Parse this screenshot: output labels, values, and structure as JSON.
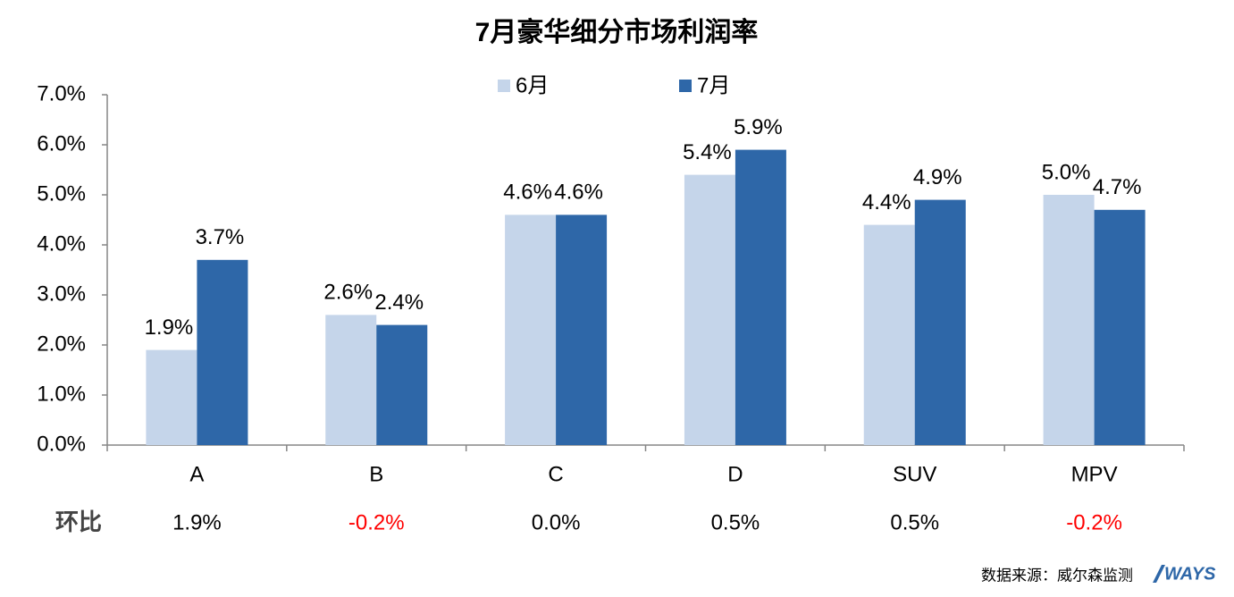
{
  "chart_data": {
    "type": "bar",
    "title": "7月豪华细分市场利润率",
    "categories": [
      "A",
      "B",
      "C",
      "D",
      "SUV",
      "MPV"
    ],
    "series": [
      {
        "name": "6月",
        "color": "#c5d5ea",
        "values": [
          1.9,
          2.6,
          4.6,
          5.4,
          4.4,
          5.0
        ],
        "value_labels": [
          "1.9%",
          "2.6%",
          "4.6%",
          "5.4%",
          "4.4%",
          "5.0%"
        ]
      },
      {
        "name": "7月",
        "color": "#2e67a8",
        "values": [
          3.7,
          2.4,
          4.6,
          5.9,
          4.9,
          4.7
        ],
        "value_labels": [
          "3.7%",
          "2.4%",
          "4.6%",
          "5.9%",
          "4.9%",
          "4.7%"
        ]
      }
    ],
    "ylim": [
      0,
      7
    ],
    "yticks": [
      {
        "value": 0,
        "label": "0.0%"
      },
      {
        "value": 1,
        "label": "1.0%"
      },
      {
        "value": 2,
        "label": "2.0%"
      },
      {
        "value": 3,
        "label": "3.0%"
      },
      {
        "value": 4,
        "label": "4.0%"
      },
      {
        "value": 5,
        "label": "5.0%"
      },
      {
        "value": 6,
        "label": "6.0%"
      },
      {
        "value": 7,
        "label": "7.0%"
      }
    ],
    "grid": false,
    "legend": "top",
    "mom": {
      "label": "环比",
      "values": [
        1.9,
        -0.2,
        0.0,
        0.5,
        0.5,
        -0.2
      ],
      "value_labels": [
        "1.9%",
        "-0.2%",
        "0.0%",
        "0.5%",
        "0.5%",
        "-0.2%"
      ],
      "negative_color": "#ff0000"
    },
    "source": "数据来源：威尔森监测",
    "logo": "WAYS"
  }
}
